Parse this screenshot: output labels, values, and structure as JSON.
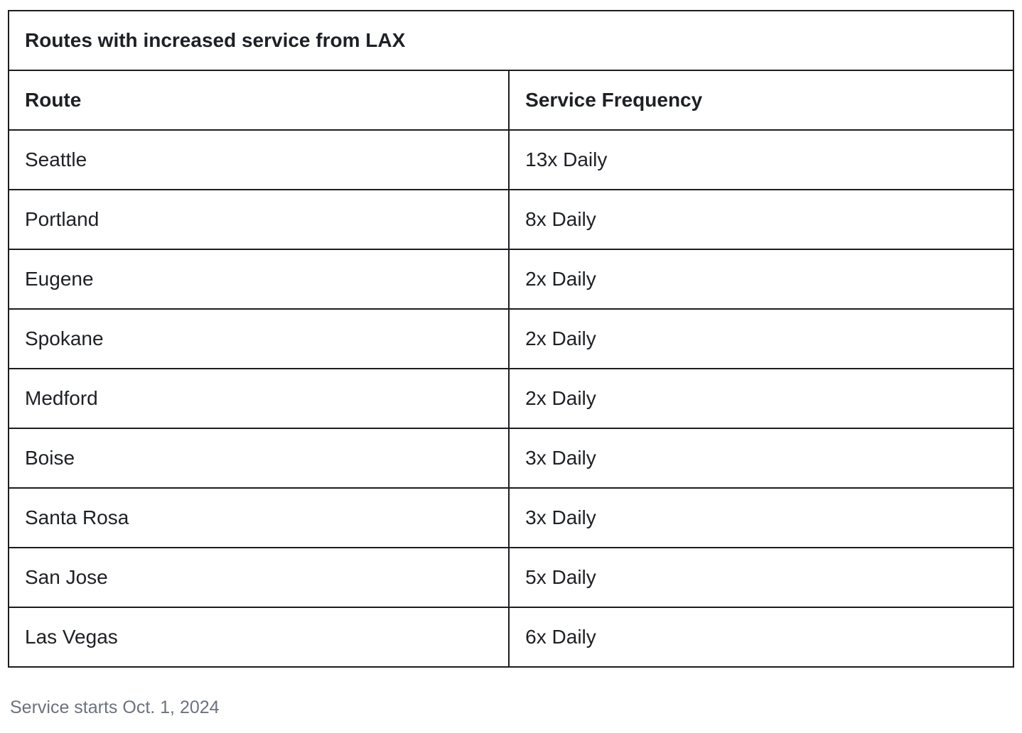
{
  "table": {
    "title": "Routes with increased service from LAX",
    "columns": [
      {
        "label": "Route"
      },
      {
        "label": "Service Frequency"
      }
    ],
    "rows": [
      {
        "route": "Seattle",
        "frequency": "13x Daily"
      },
      {
        "route": "Portland",
        "frequency": "8x Daily"
      },
      {
        "route": "Eugene",
        "frequency": "2x Daily"
      },
      {
        "route": "Spokane",
        "frequency": "2x Daily"
      },
      {
        "route": "Medford",
        "frequency": "2x Daily"
      },
      {
        "route": "Boise",
        "frequency": "3x Daily"
      },
      {
        "route": "Santa Rosa",
        "frequency": "3x Daily"
      },
      {
        "route": "San Jose",
        "frequency": "5x Daily"
      },
      {
        "route": "Las Vegas",
        "frequency": "6x Daily"
      }
    ]
  },
  "footnote": "Service starts Oct. 1, 2024",
  "colors": {
    "border": "#1c1d21",
    "text": "#1e2025",
    "footnote_text": "#6b7280",
    "background": "#ffffff"
  }
}
